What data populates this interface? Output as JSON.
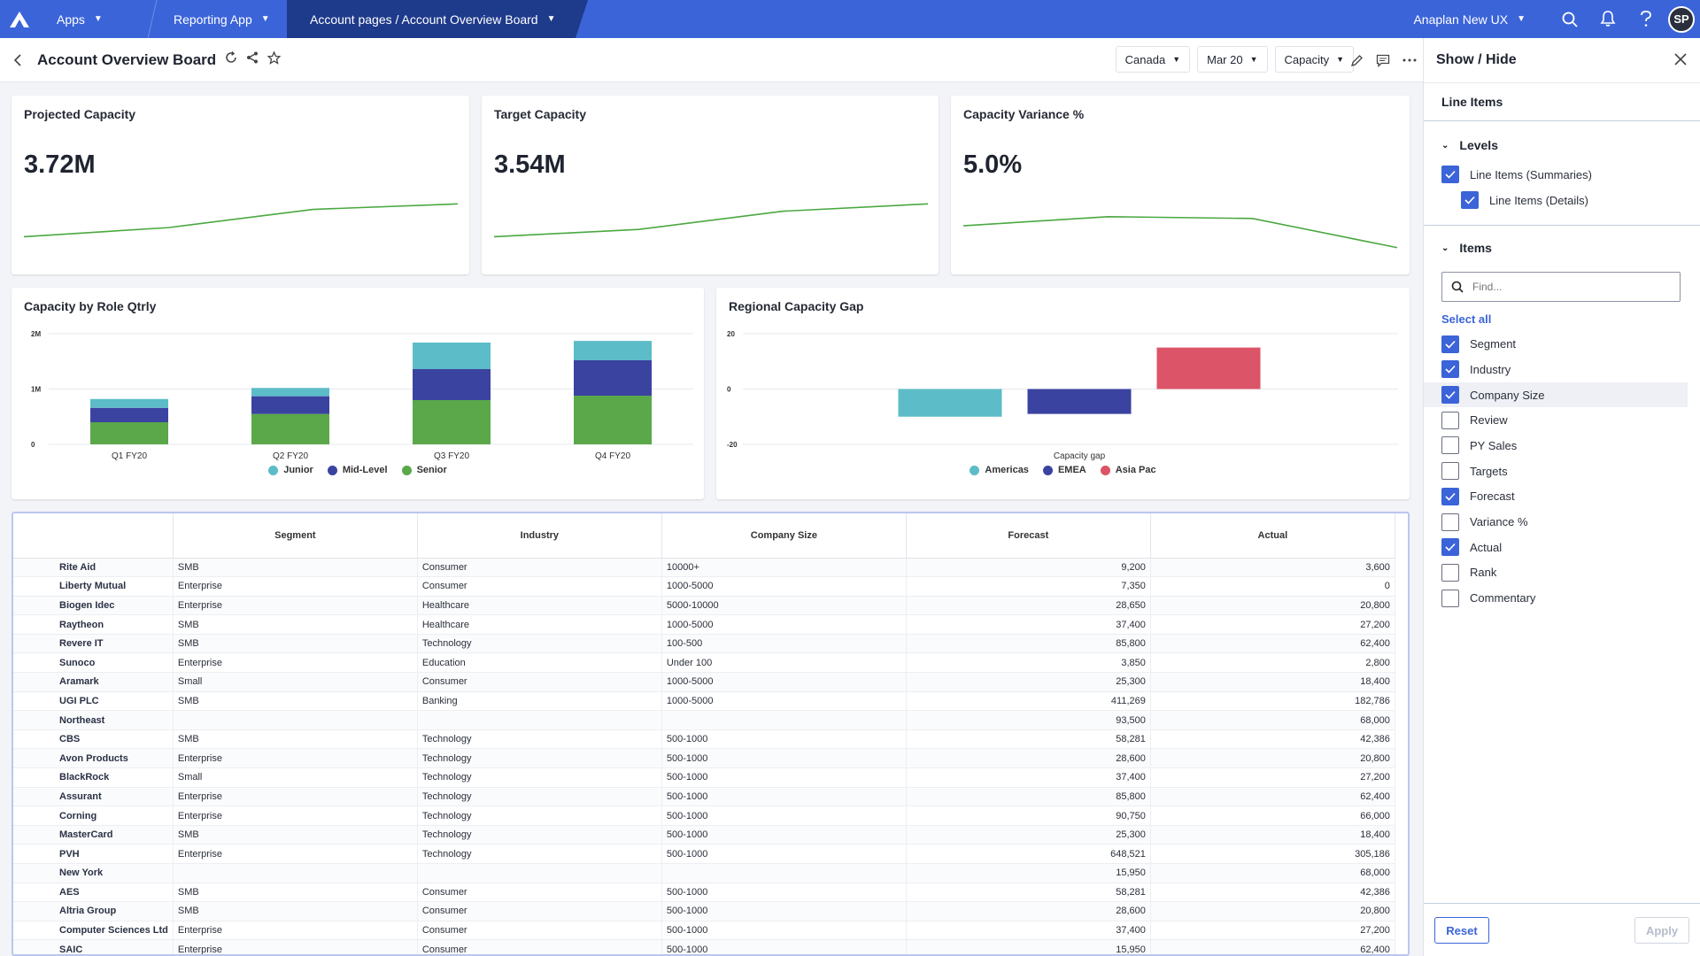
{
  "topbar": {
    "crumbs": [
      "Apps",
      "Reporting App",
      "Account pages / Account Overview Board"
    ],
    "ux_label": "Anaplan New UX",
    "avatar_initials": "SP",
    "brand_color": "#3b64d8"
  },
  "page": {
    "title": "Account Overview Board",
    "filters": [
      "Canada",
      "Mar 20",
      "Capacity"
    ]
  },
  "kpis": [
    {
      "title": "Projected Capacity",
      "value": "3.72M",
      "trend": [
        0.0,
        0.25,
        0.75,
        0.9
      ]
    },
    {
      "title": "Target Capacity",
      "value": "3.54M",
      "trend": [
        0.0,
        0.2,
        0.7,
        0.9
      ]
    },
    {
      "title": "Capacity Variance %",
      "value": "5.0%",
      "trend": [
        0.3,
        0.55,
        0.5,
        -0.3
      ]
    }
  ],
  "chart_data": [
    {
      "type": "bar",
      "stacked": true,
      "title": "Capacity by Role Qtrly",
      "categories": [
        "Q1 FY20",
        "Q2 FY20",
        "Q3 FY20",
        "Q4 FY20"
      ],
      "y_ticks": [
        "2M",
        "1M",
        "0"
      ],
      "ylim": [
        0,
        2000000
      ],
      "series": [
        {
          "name": "Senior",
          "color": "#5aa84a",
          "values": [
            400000,
            550000,
            800000,
            880000
          ]
        },
        {
          "name": "Mid-Level",
          "color": "#3b43a0",
          "values": [
            260000,
            320000,
            560000,
            640000
          ]
        },
        {
          "name": "Junior",
          "color": "#5cbcc8",
          "values": [
            160000,
            150000,
            480000,
            350000
          ]
        }
      ],
      "legend": [
        {
          "name": "Junior",
          "color": "#5cbcc8"
        },
        {
          "name": "Mid-Level",
          "color": "#3b43a0"
        },
        {
          "name": "Senior",
          "color": "#5aa84a"
        }
      ]
    },
    {
      "type": "bar",
      "title": "Regional Capacity Gap",
      "xlabel": "Capacity gap",
      "y_ticks": [
        "20",
        "0",
        "-20"
      ],
      "ylim": [
        -20,
        20
      ],
      "series": [
        {
          "name": "Americas",
          "color": "#5cbcc8",
          "values": [
            -10
          ]
        },
        {
          "name": "EMEA",
          "color": "#3b43a0",
          "values": [
            -9
          ]
        },
        {
          "name": "Asia Pac",
          "color": "#dc5468",
          "values": [
            15
          ]
        }
      ]
    }
  ],
  "grid": {
    "columns": [
      "Segment",
      "Industry",
      "Company Size",
      "Forecast",
      "Actual"
    ],
    "rows": [
      {
        "name": "Rite Aid",
        "segment": "SMB",
        "industry": "Consumer",
        "size": "10000+",
        "forecast": "9,200",
        "actual": "3,600"
      },
      {
        "name": "Liberty Mutual",
        "segment": "Enterprise",
        "industry": "Consumer",
        "size": "1000-5000",
        "forecast": "7,350",
        "actual": "0"
      },
      {
        "name": "Biogen Idec",
        "segment": "Enterprise",
        "industry": "Healthcare",
        "size": "5000-10000",
        "forecast": "28,650",
        "actual": "20,800"
      },
      {
        "name": "Raytheon",
        "segment": "SMB",
        "industry": "Healthcare",
        "size": "1000-5000",
        "forecast": "37,400",
        "actual": "27,200"
      },
      {
        "name": "Revere IT",
        "segment": "SMB",
        "industry": "Technology",
        "size": "100-500",
        "forecast": "85,800",
        "actual": "62,400"
      },
      {
        "name": "Sunoco",
        "segment": "Enterprise",
        "industry": "Education",
        "size": "Under 100",
        "forecast": "3,850",
        "actual": "2,800"
      },
      {
        "name": "Aramark",
        "segment": "Small",
        "industry": "Consumer",
        "size": "1000-5000",
        "forecast": "25,300",
        "actual": "18,400"
      },
      {
        "name": "UGI PLC",
        "segment": "SMB",
        "industry": "Banking",
        "size": "1000-5000",
        "forecast": "411,269",
        "actual": "182,786"
      },
      {
        "name": "Northeast",
        "segment": "",
        "industry": "",
        "size": "",
        "forecast": "93,500",
        "actual": "68,000"
      },
      {
        "name": "CBS",
        "segment": "SMB",
        "industry": "Technology",
        "size": "500-1000",
        "forecast": "58,281",
        "actual": "42,386"
      },
      {
        "name": "Avon Products",
        "segment": "Enterprise",
        "industry": "Technology",
        "size": "500-1000",
        "forecast": "28,600",
        "actual": "20,800"
      },
      {
        "name": "BlackRock",
        "segment": "Small",
        "industry": "Technology",
        "size": "500-1000",
        "forecast": "37,400",
        "actual": "27,200"
      },
      {
        "name": "Assurant",
        "segment": "Enterprise",
        "industry": "Technology",
        "size": "500-1000",
        "forecast": "85,800",
        "actual": "62,400"
      },
      {
        "name": "Corning",
        "segment": "Enterprise",
        "industry": "Technology",
        "size": "500-1000",
        "forecast": "90,750",
        "actual": "66,000"
      },
      {
        "name": "MasterCard",
        "segment": "SMB",
        "industry": "Technology",
        "size": "500-1000",
        "forecast": "25,300",
        "actual": "18,400"
      },
      {
        "name": "PVH",
        "segment": "Enterprise",
        "industry": "Technology",
        "size": "500-1000",
        "forecast": "648,521",
        "actual": "305,186"
      },
      {
        "name": "New York",
        "segment": "",
        "industry": "",
        "size": "",
        "forecast": "15,950",
        "actual": "68,000"
      },
      {
        "name": "AES",
        "segment": "SMB",
        "industry": "Consumer",
        "size": "500-1000",
        "forecast": "58,281",
        "actual": "42,386"
      },
      {
        "name": "Altria Group",
        "segment": "SMB",
        "industry": "Consumer",
        "size": "500-1000",
        "forecast": "28,600",
        "actual": "20,800"
      },
      {
        "name": "Computer Sciences Ltd",
        "segment": "Enterprise",
        "industry": "Consumer",
        "size": "500-1000",
        "forecast": "37,400",
        "actual": "27,200"
      },
      {
        "name": "SAIC",
        "segment": "Enterprise",
        "industry": "Consumer",
        "size": "500-1000",
        "forecast": "15,950",
        "actual": "62,400"
      }
    ]
  },
  "panel": {
    "title": "Show / Hide",
    "tab": "Line Items",
    "levels_label": "Levels",
    "levels": [
      {
        "label": "Line Items (Summaries)",
        "checked": true
      },
      {
        "label": "Line Items (Details)",
        "checked": true
      }
    ],
    "items_label": "Items",
    "search_placeholder": "Find...",
    "select_all": "Select all",
    "items": [
      {
        "label": "Segment",
        "checked": true
      },
      {
        "label": "Industry",
        "checked": true
      },
      {
        "label": "Company Size",
        "checked": true
      },
      {
        "label": "Review",
        "checked": false
      },
      {
        "label": "PY Sales",
        "checked": false
      },
      {
        "label": "Targets",
        "checked": false
      },
      {
        "label": "Forecast",
        "checked": true
      },
      {
        "label": "Variance %",
        "checked": false
      },
      {
        "label": "Actual",
        "checked": true
      },
      {
        "label": "Rank",
        "checked": false
      },
      {
        "label": "Commentary",
        "checked": false
      }
    ],
    "reset_label": "Reset",
    "apply_label": "Apply"
  }
}
